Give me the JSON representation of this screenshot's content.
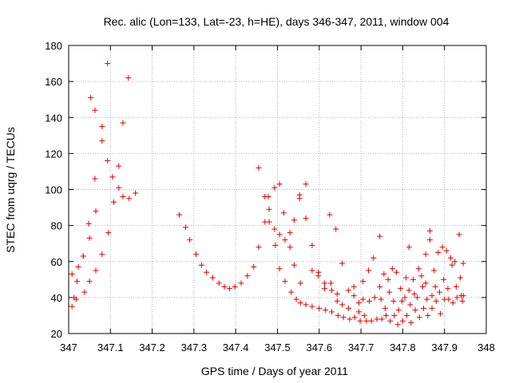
{
  "chart_data": {
    "type": "scatter",
    "title": "Rec. alic (Lon=133, Lat=-23, h=HE), days 346-347, 2011, window 004",
    "xlabel": "GPS time / Days of year 2011",
    "ylabel": "STEC from uqrg / TECUs",
    "xlim": [
      347,
      348
    ],
    "ylim": [
      20,
      180
    ],
    "xticks": [
      347,
      347.1,
      347.2,
      347.3,
      347.4,
      347.5,
      347.6,
      347.7,
      347.8,
      347.9,
      348
    ],
    "xtick_labels": [
      "347",
      "347.1",
      "347.2",
      "347.3",
      "347.4",
      "347.5",
      "347.6",
      "347.7",
      "347.8",
      "347.9",
      "348"
    ],
    "yticks": [
      20,
      40,
      60,
      80,
      100,
      120,
      140,
      160,
      180
    ],
    "ytick_labels": [
      "20",
      "40",
      "60",
      "80",
      "100",
      "120",
      "140",
      "160",
      "180"
    ],
    "grid": true,
    "marker": "+",
    "color": "#e00000",
    "series": [
      {
        "name": "STEC",
        "points": [
          [
            347.008,
            53
          ],
          [
            347.008,
            35
          ],
          [
            347.013,
            40
          ],
          [
            347.018,
            39
          ],
          [
            347.02,
            49
          ],
          [
            347.023,
            57
          ],
          [
            347.035,
            63
          ],
          [
            347.035,
            63
          ],
          [
            347.038,
            43
          ],
          [
            347.048,
            81
          ],
          [
            347.05,
            73
          ],
          [
            347.05,
            49
          ],
          [
            347.053,
            151
          ],
          [
            347.063,
            144
          ],
          [
            347.063,
            106
          ],
          [
            347.065,
            88
          ],
          [
            347.065,
            55
          ],
          [
            347.08,
            135
          ],
          [
            347.08,
            127
          ],
          [
            347.08,
            64
          ],
          [
            347.093,
            170
          ],
          [
            347.093,
            116
          ],
          [
            347.095,
            76
          ],
          [
            347.105,
            107
          ],
          [
            347.108,
            93
          ],
          [
            347.12,
            113
          ],
          [
            347.12,
            101
          ],
          [
            347.13,
            137
          ],
          [
            347.13,
            96
          ],
          [
            347.143,
            162
          ],
          [
            347.145,
            95
          ],
          [
            347.16,
            98
          ],
          [
            347.265,
            86
          ],
          [
            347.28,
            79
          ],
          [
            347.29,
            72
          ],
          [
            347.305,
            64
          ],
          [
            347.318,
            58
          ],
          [
            347.33,
            54
          ],
          [
            347.345,
            51
          ],
          [
            347.36,
            48
          ],
          [
            347.373,
            46
          ],
          [
            347.385,
            45
          ],
          [
            347.398,
            46
          ],
          [
            347.413,
            48
          ],
          [
            347.428,
            52
          ],
          [
            347.443,
            57
          ],
          [
            347.455,
            68
          ],
          [
            347.455,
            112
          ],
          [
            347.47,
            96
          ],
          [
            347.47,
            82
          ],
          [
            347.478,
            96
          ],
          [
            347.48,
            89
          ],
          [
            347.48,
            82
          ],
          [
            347.493,
            101
          ],
          [
            347.493,
            78
          ],
          [
            347.495,
            69
          ],
          [
            347.505,
            103
          ],
          [
            347.505,
            75
          ],
          [
            347.505,
            56
          ],
          [
            347.515,
            87
          ],
          [
            347.518,
            72
          ],
          [
            347.518,
            49
          ],
          [
            347.53,
            68
          ],
          [
            347.53,
            76
          ],
          [
            347.533,
            43
          ],
          [
            347.54,
            58
          ],
          [
            347.54,
            83
          ],
          [
            347.545,
            39
          ],
          [
            347.553,
            97
          ],
          [
            347.553,
            95
          ],
          [
            347.555,
            48
          ],
          [
            347.555,
            37
          ],
          [
            347.568,
            103
          ],
          [
            347.568,
            84
          ],
          [
            347.568,
            36
          ],
          [
            347.583,
            69
          ],
          [
            347.583,
            55
          ],
          [
            347.583,
            35
          ],
          [
            347.598,
            54
          ],
          [
            347.598,
            52
          ],
          [
            347.6,
            34
          ],
          [
            347.613,
            48
          ],
          [
            347.613,
            45
          ],
          [
            347.615,
            33
          ],
          [
            347.625,
            86
          ],
          [
            347.628,
            48
          ],
          [
            347.63,
            44
          ],
          [
            347.63,
            32
          ],
          [
            347.64,
            78
          ],
          [
            347.643,
            42
          ],
          [
            347.643,
            38
          ],
          [
            347.645,
            30
          ],
          [
            347.655,
            59
          ],
          [
            347.655,
            36
          ],
          [
            347.658,
            29
          ],
          [
            347.67,
            44
          ],
          [
            347.67,
            34
          ],
          [
            347.673,
            28
          ],
          [
            347.683,
            41
          ],
          [
            347.683,
            46
          ],
          [
            347.685,
            29
          ],
          [
            347.695,
            32
          ],
          [
            347.695,
            37
          ],
          [
            347.698,
            27
          ],
          [
            347.705,
            49
          ],
          [
            347.705,
            39
          ],
          [
            347.708,
            30
          ],
          [
            347.713,
            27
          ],
          [
            347.718,
            55
          ],
          [
            347.72,
            38
          ],
          [
            347.725,
            27
          ],
          [
            347.73,
            62
          ],
          [
            347.733,
            40
          ],
          [
            347.738,
            28
          ],
          [
            347.745,
            74
          ],
          [
            347.745,
            46
          ],
          [
            347.748,
            39
          ],
          [
            347.75,
            28
          ],
          [
            347.755,
            53
          ],
          [
            347.758,
            34
          ],
          [
            347.76,
            30
          ],
          [
            347.765,
            50
          ],
          [
            347.768,
            43
          ],
          [
            347.77,
            27
          ],
          [
            347.775,
            56
          ],
          [
            347.778,
            38
          ],
          [
            347.78,
            30
          ],
          [
            347.785,
            54
          ],
          [
            347.788,
            25
          ],
          [
            347.79,
            33
          ],
          [
            347.795,
            45
          ],
          [
            347.798,
            38
          ],
          [
            347.8,
            27
          ],
          [
            347.805,
            40
          ],
          [
            347.808,
            51
          ],
          [
            347.81,
            30
          ],
          [
            347.815,
            68
          ],
          [
            347.815,
            44
          ],
          [
            347.818,
            36
          ],
          [
            347.82,
            26
          ],
          [
            347.825,
            50
          ],
          [
            347.828,
            42
          ],
          [
            347.83,
            33
          ],
          [
            347.835,
            40
          ],
          [
            347.838,
            56
          ],
          [
            347.84,
            29
          ],
          [
            347.845,
            52
          ],
          [
            347.848,
            46
          ],
          [
            347.85,
            34
          ],
          [
            347.855,
            64
          ],
          [
            347.855,
            48
          ],
          [
            347.858,
            39
          ],
          [
            347.86,
            30
          ],
          [
            347.865,
            72
          ],
          [
            347.865,
            77
          ],
          [
            347.87,
            41
          ],
          [
            347.87,
            34
          ],
          [
            347.875,
            55
          ],
          [
            347.878,
            46
          ],
          [
            347.88,
            38
          ],
          [
            347.885,
            65
          ],
          [
            347.888,
            43
          ],
          [
            347.89,
            31
          ],
          [
            347.895,
            68
          ],
          [
            347.898,
            50
          ],
          [
            347.9,
            39
          ],
          [
            347.905,
            66
          ],
          [
            347.908,
            45
          ],
          [
            347.91,
            39
          ],
          [
            347.915,
            62
          ],
          [
            347.918,
            58
          ],
          [
            347.92,
            37
          ],
          [
            347.925,
            60
          ],
          [
            347.928,
            46
          ],
          [
            347.93,
            40
          ],
          [
            347.935,
            75
          ],
          [
            347.938,
            51
          ],
          [
            347.94,
            41
          ],
          [
            347.943,
            38
          ],
          [
            347.945,
            59
          ],
          [
            347.945,
            41
          ]
        ]
      }
    ]
  }
}
